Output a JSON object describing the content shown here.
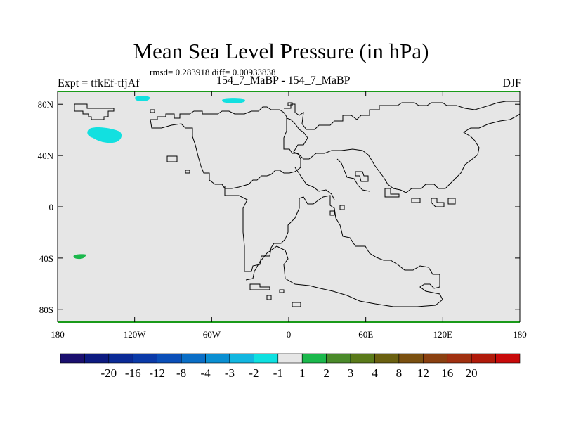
{
  "chart_data": {
    "type": "heatmap",
    "title": "Mean Sea Level Pressure (in hPa)",
    "stats": "rmsd= 0.283918 diff= 0.00933838",
    "left_label": "Expt = tfkEf-tfjAf",
    "center_label": "154_7_MaBP - 154_7_MaBP",
    "right_label": "DJF",
    "xlim": [
      -180,
      180
    ],
    "ylim": [
      -90,
      90
    ],
    "x_ticks": [
      {
        "value": -180,
        "label": "180"
      },
      {
        "value": -120,
        "label": "120W"
      },
      {
        "value": -60,
        "label": "60W"
      },
      {
        "value": 0,
        "label": "0"
      },
      {
        "value": 60,
        "label": "60E"
      },
      {
        "value": 120,
        "label": "120E"
      },
      {
        "value": 180,
        "label": "180"
      }
    ],
    "y_ticks": [
      {
        "value": 80,
        "label": "80N"
      },
      {
        "value": 40,
        "label": "40N"
      },
      {
        "value": 0,
        "label": "0"
      },
      {
        "value": -40,
        "label": "40S"
      },
      {
        "value": -80,
        "label": "80S"
      }
    ],
    "background_color": "#e6e6e6",
    "colorbar": {
      "colors": [
        "#1a0f6e",
        "#0c1a80",
        "#0a2a96",
        "#0a3aa8",
        "#0a4fb8",
        "#0a6ec6",
        "#0a8fd2",
        "#12b6e0",
        "#0ee0e0",
        "#e6e6e6",
        "#1bb84c",
        "#4a8a2a",
        "#5a7a1a",
        "#6a6010",
        "#7a5010",
        "#8a4010",
        "#a03010",
        "#b01a0a",
        "#c80a0a"
      ],
      "labels": [
        "-20",
        "-16",
        "-12",
        "-8",
        "-4",
        "-3",
        "-2",
        "-1",
        "1",
        "2",
        "3",
        "4",
        "8",
        "12",
        "16",
        "20"
      ]
    },
    "anomalies": [
      {
        "lon": -147,
        "lat": 56,
        "range": "-2 to -1",
        "color": "#12e0e0"
      },
      {
        "lon": -114,
        "lat": 84,
        "range": "-2 to -1",
        "color": "#12e0e0"
      },
      {
        "lon": -43,
        "lat": 82,
        "range": "-2 to -1",
        "color": "#12e0e0"
      },
      {
        "lon": -163,
        "lat": -39,
        "range": "1 to 2",
        "color": "#1bb84c"
      }
    ]
  }
}
